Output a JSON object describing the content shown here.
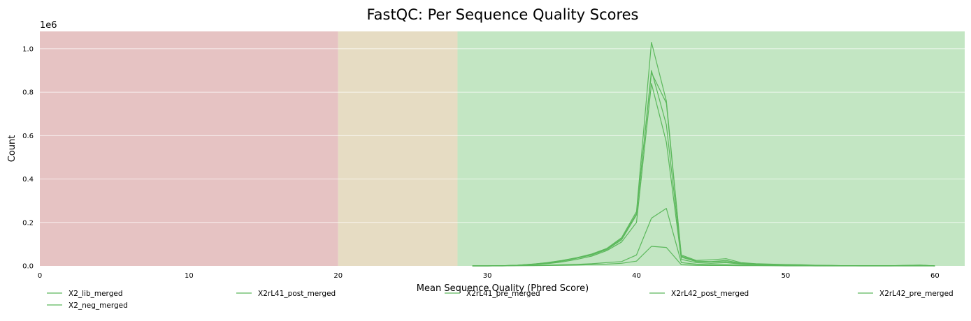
{
  "chart_data": {
    "type": "line",
    "title": "FastQC: Per Sequence Quality Scores",
    "xlabel": "Mean Sequence Quality (Phred Score)",
    "ylabel": "Count",
    "y_multiplier": "1e6",
    "xlim": [
      0,
      62
    ],
    "ylim": [
      0,
      1.08
    ],
    "xticks": [
      0,
      10,
      20,
      30,
      40,
      50,
      60
    ],
    "yticks": [
      0.0,
      0.2,
      0.4,
      0.6,
      0.8,
      1.0
    ],
    "ytick_labels": [
      "0.0",
      "0.2",
      "0.4",
      "0.6",
      "0.8",
      "1.0"
    ],
    "grid": true,
    "legend_position": "bottom",
    "line_color": "#5cb85c",
    "zones": [
      {
        "from": 0,
        "to": 20,
        "color": "#e6c3c3"
      },
      {
        "from": 20,
        "to": 28,
        "color": "#e6dcc3"
      },
      {
        "from": 28,
        "to": 62,
        "color": "#c3e6c3"
      }
    ],
    "x": [
      29,
      30,
      31,
      32,
      33,
      34,
      35,
      36,
      37,
      38,
      39,
      40,
      41,
      42,
      43,
      44,
      45,
      46,
      47,
      48,
      49,
      50,
      51,
      52,
      53,
      54,
      55,
      56,
      57,
      58,
      59,
      60
    ],
    "series": [
      {
        "name": "X2_lib_merged",
        "values": [
          0,
          0,
          0.001,
          0.003,
          0.008,
          0.015,
          0.025,
          0.038,
          0.055,
          0.08,
          0.13,
          0.25,
          1.03,
          0.76,
          0.05,
          0.025,
          0.028,
          0.033,
          0.015,
          0.01,
          0.008,
          0.006,
          0.005,
          0.003,
          0.002,
          0.001,
          0.001,
          0.001,
          0.001,
          0.002,
          0.004,
          0
        ]
      },
      {
        "name": "X2_neg_merged",
        "values": [
          0,
          0,
          0,
          0.001,
          0.002,
          0.003,
          0.005,
          0.007,
          0.01,
          0.015,
          0.02,
          0.05,
          0.22,
          0.265,
          0.015,
          0.008,
          0.005,
          0.005,
          0.003,
          0.002,
          0.001,
          0.001,
          0.001,
          0,
          0,
          0,
          0,
          0,
          0,
          0,
          0,
          0
        ]
      },
      {
        "name": "X2rL41_post_merged",
        "values": [
          0,
          0,
          0.001,
          0.002,
          0.005,
          0.01,
          0.018,
          0.03,
          0.045,
          0.07,
          0.11,
          0.2,
          0.84,
          0.57,
          0.03,
          0.015,
          0.012,
          0.015,
          0.008,
          0.005,
          0.004,
          0.003,
          0.002,
          0.001,
          0.001,
          0.001,
          0,
          0,
          0,
          0.001,
          0.002,
          0
        ]
      },
      {
        "name": "X2rL41_pre_merged",
        "values": [
          0,
          0,
          0,
          0.001,
          0.001,
          0.002,
          0.003,
          0.004,
          0.006,
          0.008,
          0.012,
          0.022,
          0.09,
          0.085,
          0.005,
          0.003,
          0.002,
          0.002,
          0.001,
          0.001,
          0.001,
          0,
          0,
          0,
          0,
          0,
          0,
          0,
          0,
          0,
          0,
          0
        ]
      },
      {
        "name": "X2rL42_post_merged",
        "values": [
          0,
          0,
          0.001,
          0.003,
          0.007,
          0.013,
          0.022,
          0.035,
          0.05,
          0.075,
          0.12,
          0.235,
          0.9,
          0.65,
          0.04,
          0.02,
          0.018,
          0.02,
          0.01,
          0.007,
          0.005,
          0.004,
          0.003,
          0.002,
          0.001,
          0.001,
          0.001,
          0.001,
          0.001,
          0.001,
          0.003,
          0
        ]
      },
      {
        "name": "X2rL42_pre_merged",
        "values": [
          0,
          0,
          0.001,
          0.003,
          0.008,
          0.014,
          0.024,
          0.037,
          0.052,
          0.078,
          0.125,
          0.24,
          0.89,
          0.75,
          0.045,
          0.022,
          0.02,
          0.025,
          0.012,
          0.008,
          0.006,
          0.005,
          0.004,
          0.002,
          0.002,
          0.001,
          0.001,
          0.001,
          0.001,
          0.002,
          0.003,
          0
        ]
      }
    ]
  }
}
